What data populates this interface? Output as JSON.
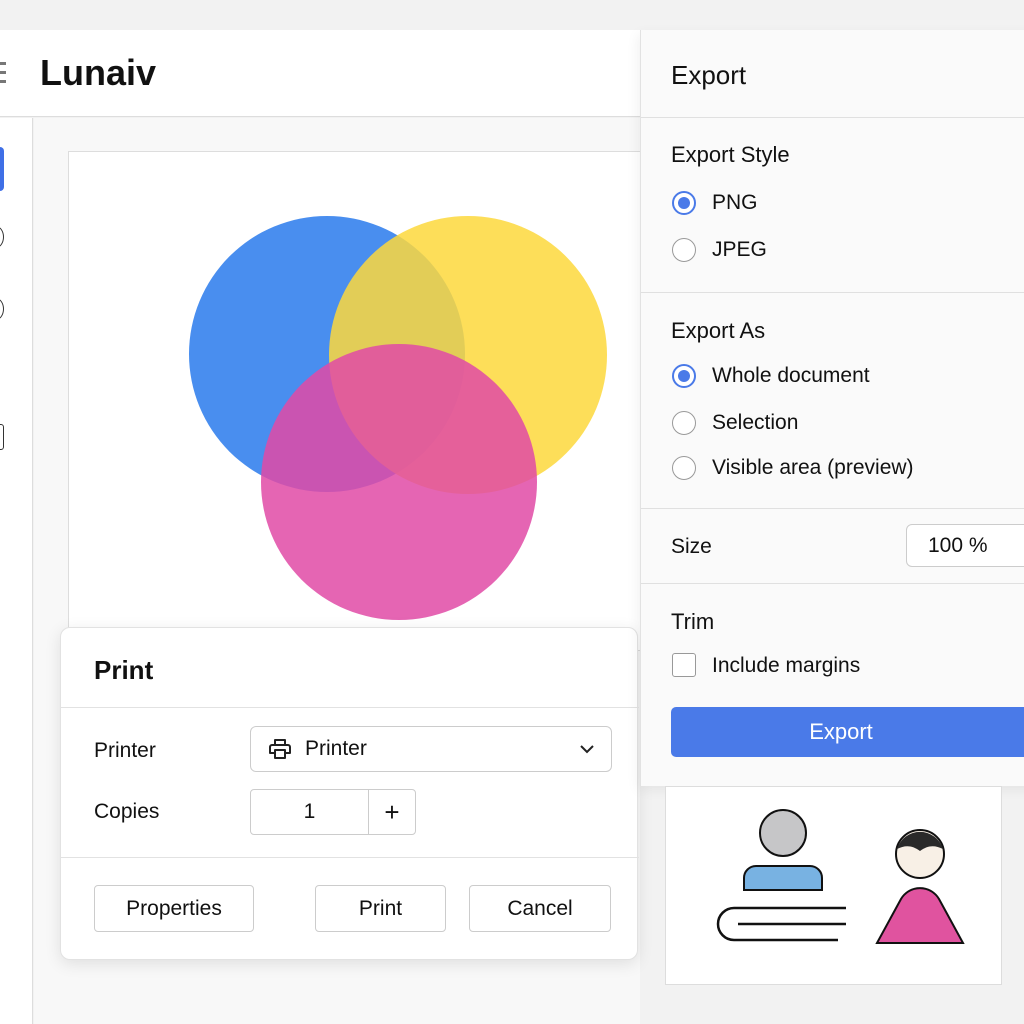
{
  "app": {
    "title": "Lunaiv"
  },
  "print": {
    "title": "Print",
    "printer_label": "Printer",
    "printer_value": "Printer",
    "copies_label": "Copies",
    "copies_value": "1",
    "properties": "Properties",
    "print": "Print",
    "cancel": "Cancel"
  },
  "export": {
    "title": "Export",
    "style_heading": "Export Style",
    "style_options": [
      "PNG",
      "JPEG"
    ],
    "style_selected": "PNG",
    "as_heading": "Export As",
    "as_options": [
      "Whole document",
      "Selection",
      "Visible area (preview)"
    ],
    "as_selected": "Whole document",
    "size_label": "Size",
    "size_value": "100 %",
    "trim_heading": "Trim",
    "include_margins": "Include margins",
    "include_margins_checked": false,
    "export_button": "Export"
  },
  "colors": {
    "accent": "#4a7ae8",
    "venn_blue": "#3a84ee",
    "venn_yellow": "#fdd83c",
    "venn_magenta": "#e04aa6"
  },
  "icons": [
    "menu-icon",
    "printer-icon",
    "chevron-down-icon",
    "plus-icon"
  ]
}
